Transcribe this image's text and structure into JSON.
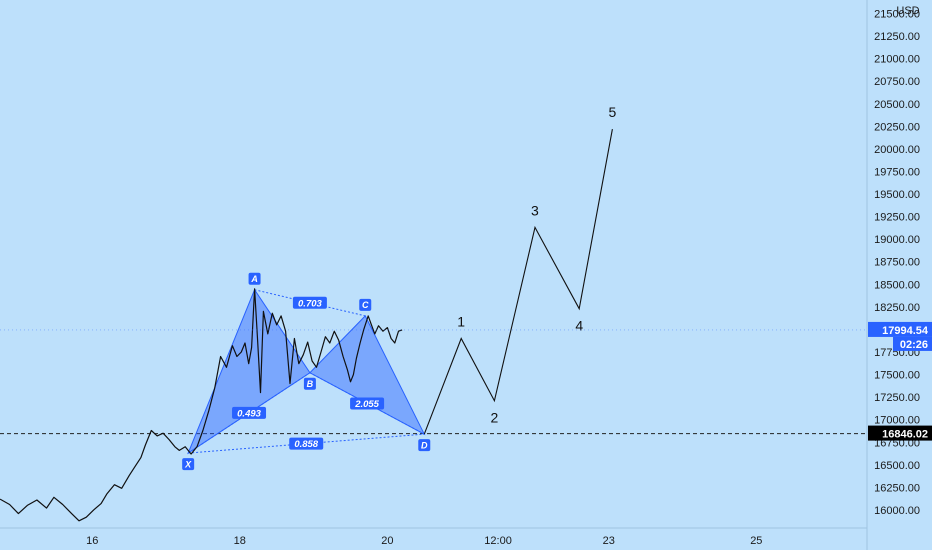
{
  "chart_data": {
    "type": "line",
    "title": "",
    "currency": "USD",
    "ylim": [
      15800,
      21650
    ],
    "y_ticks": [
      16000,
      16250,
      16500,
      16750,
      17000,
      17250,
      17500,
      17750,
      18000,
      18250,
      18500,
      18750,
      19000,
      19250,
      19500,
      19750,
      20000,
      20250,
      20500,
      20750,
      21000,
      21250,
      21500
    ],
    "y_tick_labels": [
      "16000.00",
      "16250.00",
      "16500.00",
      "16750.00",
      "17000.00",
      "17250.00",
      "17500.00",
      "17750.00",
      "18000.00",
      "18250.00",
      "18500.00",
      "18750.00",
      "19000.00",
      "19250.00",
      "19500.00",
      "19750.00",
      "20000.00",
      "20250.00",
      "20500.00",
      "20750.00",
      "21000.00",
      "21250.00",
      "21500.00"
    ],
    "x_ticks": [
      {
        "t": 1.0,
        "label": "16"
      },
      {
        "t": 3.0,
        "label": "18"
      },
      {
        "t": 5.0,
        "label": "20"
      },
      {
        "t": 6.5,
        "label": "12:00"
      },
      {
        "t": 8.0,
        "label": "23"
      },
      {
        "t": 10.0,
        "label": "25"
      }
    ],
    "xlim": [
      -0.25,
      11.5
    ],
    "current_price": {
      "value": 17994.54,
      "label": "17994.54",
      "countdown": "02:26",
      "color": "#2962ff"
    },
    "level_line": {
      "value": 16846.02,
      "label": "16846.02"
    },
    "price_series_color": "#111111",
    "price_series": [
      {
        "t": -0.25,
        "y": 16120
      },
      {
        "t": -0.12,
        "y": 16060
      },
      {
        "t": 0.0,
        "y": 15960
      },
      {
        "t": 0.12,
        "y": 16050
      },
      {
        "t": 0.25,
        "y": 16110
      },
      {
        "t": 0.38,
        "y": 16020
      },
      {
        "t": 0.48,
        "y": 16140
      },
      {
        "t": 0.6,
        "y": 16060
      },
      {
        "t": 0.72,
        "y": 15960
      },
      {
        "t": 0.82,
        "y": 15880
      },
      {
        "t": 0.92,
        "y": 15920
      },
      {
        "t": 1.02,
        "y": 16000
      },
      {
        "t": 1.12,
        "y": 16070
      },
      {
        "t": 1.2,
        "y": 16180
      },
      {
        "t": 1.3,
        "y": 16280
      },
      {
        "t": 1.4,
        "y": 16240
      },
      {
        "t": 1.5,
        "y": 16380
      },
      {
        "t": 1.58,
        "y": 16480
      },
      {
        "t": 1.66,
        "y": 16580
      },
      {
        "t": 1.72,
        "y": 16720
      },
      {
        "t": 1.8,
        "y": 16880
      },
      {
        "t": 1.88,
        "y": 16820
      },
      {
        "t": 1.96,
        "y": 16850
      },
      {
        "t": 2.04,
        "y": 16780
      },
      {
        "t": 2.12,
        "y": 16700
      },
      {
        "t": 2.18,
        "y": 16660
      },
      {
        "t": 2.26,
        "y": 16700
      },
      {
        "t": 2.34,
        "y": 16620
      },
      {
        "t": 2.42,
        "y": 16700
      },
      {
        "t": 2.5,
        "y": 16880
      },
      {
        "t": 2.58,
        "y": 17100
      },
      {
        "t": 2.66,
        "y": 17350
      },
      {
        "t": 2.74,
        "y": 17700
      },
      {
        "t": 2.82,
        "y": 17580
      },
      {
        "t": 2.9,
        "y": 17820
      },
      {
        "t": 2.96,
        "y": 17700
      },
      {
        "t": 3.02,
        "y": 17750
      },
      {
        "t": 3.07,
        "y": 17850
      },
      {
        "t": 3.12,
        "y": 17620
      },
      {
        "t": 3.16,
        "y": 17800
      },
      {
        "t": 3.2,
        "y": 18450
      },
      {
        "t": 3.24,
        "y": 17900
      },
      {
        "t": 3.28,
        "y": 17300
      },
      {
        "t": 3.32,
        "y": 18200
      },
      {
        "t": 3.38,
        "y": 17950
      },
      {
        "t": 3.44,
        "y": 18180
      },
      {
        "t": 3.5,
        "y": 18050
      },
      {
        "t": 3.56,
        "y": 18150
      },
      {
        "t": 3.62,
        "y": 17980
      },
      {
        "t": 3.68,
        "y": 17400
      },
      {
        "t": 3.74,
        "y": 17900
      },
      {
        "t": 3.8,
        "y": 17620
      },
      {
        "t": 3.86,
        "y": 17720
      },
      {
        "t": 3.92,
        "y": 17860
      },
      {
        "t": 3.98,
        "y": 17650
      },
      {
        "t": 4.04,
        "y": 17580
      },
      {
        "t": 4.1,
        "y": 17750
      },
      {
        "t": 4.16,
        "y": 17920
      },
      {
        "t": 4.22,
        "y": 17850
      },
      {
        "t": 4.28,
        "y": 17980
      },
      {
        "t": 4.34,
        "y": 17880
      },
      {
        "t": 4.4,
        "y": 17700
      },
      {
        "t": 4.46,
        "y": 17550
      },
      {
        "t": 4.5,
        "y": 17420
      },
      {
        "t": 4.54,
        "y": 17500
      },
      {
        "t": 4.58,
        "y": 17680
      },
      {
        "t": 4.63,
        "y": 17850
      },
      {
        "t": 4.68,
        "y": 18000
      },
      {
        "t": 4.74,
        "y": 18150
      },
      {
        "t": 4.78,
        "y": 18060
      },
      {
        "t": 4.83,
        "y": 17950
      },
      {
        "t": 4.88,
        "y": 18040
      },
      {
        "t": 4.94,
        "y": 17980
      },
      {
        "t": 5.0,
        "y": 18020
      },
      {
        "t": 5.05,
        "y": 17900
      },
      {
        "t": 5.1,
        "y": 17850
      },
      {
        "t": 5.15,
        "y": 17980
      },
      {
        "t": 5.2,
        "y": 17994.54
      }
    ],
    "harmonic_pattern": {
      "fill_color": "#2962ff",
      "points": [
        {
          "name": "X",
          "t": 2.3,
          "y": 16630
        },
        {
          "name": "A",
          "t": 3.2,
          "y": 18440
        },
        {
          "name": "B",
          "t": 3.95,
          "y": 17520
        },
        {
          "name": "C",
          "t": 4.7,
          "y": 18150
        },
        {
          "name": "D",
          "t": 5.5,
          "y": 16840
        }
      ],
      "ratios": [
        {
          "from": "X",
          "to": "B",
          "label": "0.493"
        },
        {
          "from": "A",
          "to": "C",
          "label": "0.703"
        },
        {
          "from": "B",
          "to": "D",
          "label": "2.055"
        },
        {
          "from": "X",
          "to": "D",
          "label": "0.858"
        }
      ]
    },
    "wave_projection": [
      {
        "t": 5.5,
        "y": 16840,
        "label": ""
      },
      {
        "t": 6.0,
        "y": 17900,
        "label": "1"
      },
      {
        "t": 6.45,
        "y": 17210,
        "label": "2"
      },
      {
        "t": 7.0,
        "y": 19130,
        "label": "3"
      },
      {
        "t": 7.6,
        "y": 18230,
        "label": "4"
      },
      {
        "t": 8.05,
        "y": 20220,
        "label": "5"
      }
    ]
  }
}
